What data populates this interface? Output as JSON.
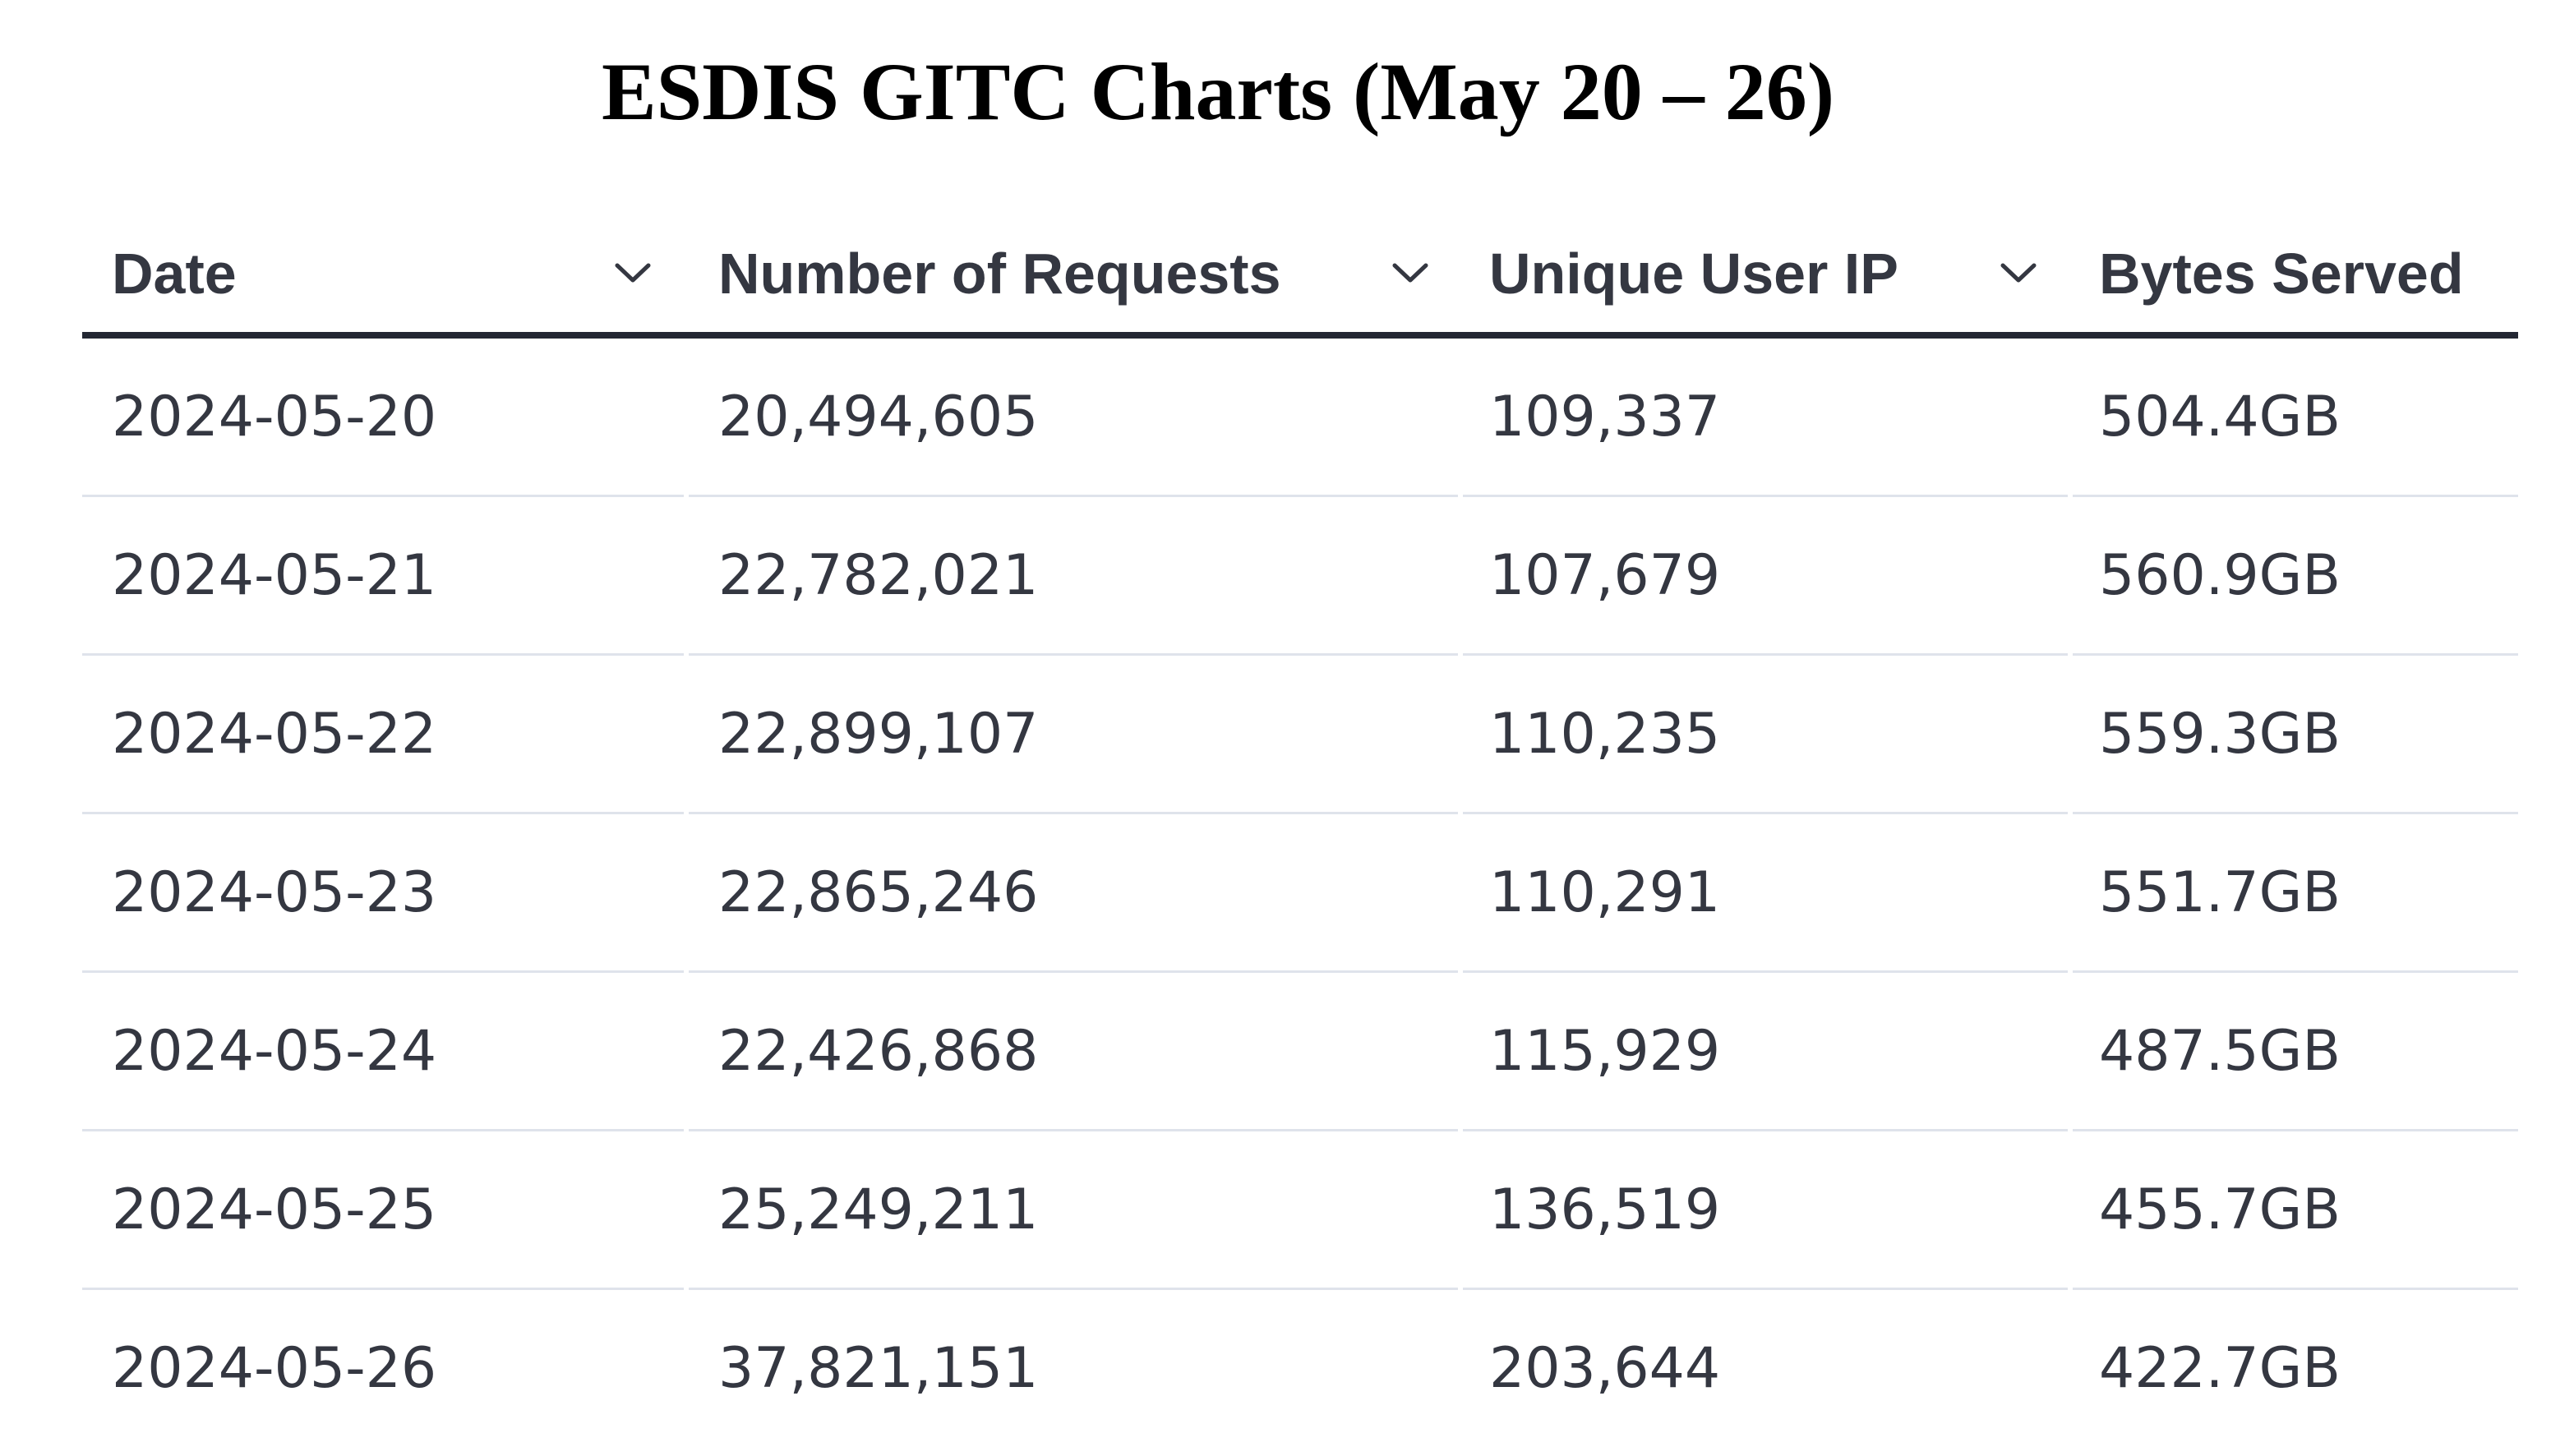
{
  "page": {
    "title": "ESDIS GITC Charts (May 20 – 26)"
  },
  "table": {
    "columns": [
      {
        "label": "Date",
        "icon": "chevron-down-icon"
      },
      {
        "label": "Number of Requests",
        "icon": "chevron-down-icon"
      },
      {
        "label": "Unique User IP",
        "icon": "chevron-down-icon"
      },
      {
        "label": "Bytes Served"
      }
    ],
    "rows": [
      [
        "2024-05-20",
        "20,494,605",
        "109,337",
        "504.4GB"
      ],
      [
        "2024-05-21",
        "22,782,021",
        "107,679",
        "560.9GB"
      ],
      [
        "2024-05-22",
        "22,899,107",
        "110,235",
        "559.3GB"
      ],
      [
        "2024-05-23",
        "22,865,246",
        "110,291",
        "551.7GB"
      ],
      [
        "2024-05-24",
        "22,426,868",
        "115,929",
        "487.5GB"
      ],
      [
        "2024-05-25",
        "25,249,211",
        "136,519",
        "455.7GB"
      ],
      [
        "2024-05-26",
        "37,821,151",
        "203,644",
        "422.7GB"
      ]
    ]
  },
  "colors": {
    "text": "#343741",
    "header_rule": "#232733",
    "row_divider": "#dfe3eb"
  }
}
